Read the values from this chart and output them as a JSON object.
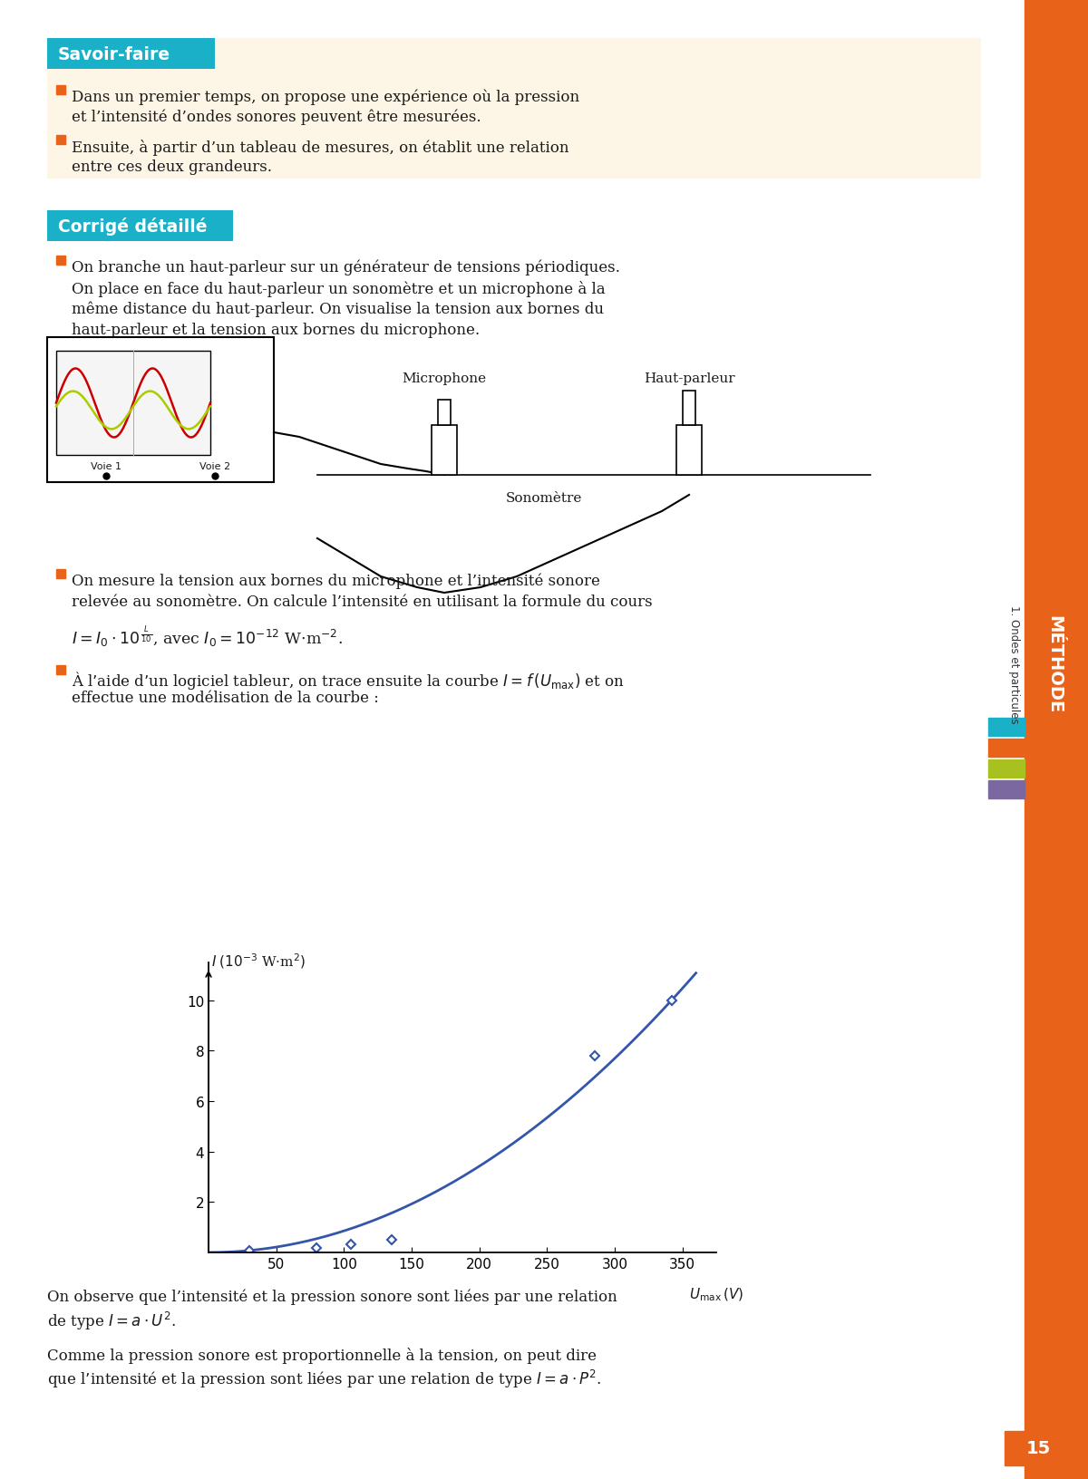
{
  "page_bg": "#ffffff",
  "cream_bg": "#fdf5e6",
  "teal_color": "#1ab0c8",
  "orange_color": "#e8621a",
  "text_color": "#1a1a1a",
  "blue_curve": "#3355aa",
  "savoir_faire_title": "Savoir-faire",
  "sf_bullet1_line1": "Dans un premier temps, on propose une expérience où la pression",
  "sf_bullet1_line2": "et l’intensité d’ondes sonores peuvent être mesurées.",
  "sf_bullet2_line1": "Ensuite, à partir d’un tableau de mesures, on établit une relation",
  "sf_bullet2_line2": "entre ces deux grandeurs.",
  "corrige_title": "Corrigé détaillé",
  "p1_line1": "On branche un haut-parleur sur un générateur de tensions périodiques.",
  "p1_line2": "On place en face du haut-parleur un sonomètre et un microphone à la",
  "p1_line3": "même distance du haut-parleur. On visualise la tension aux bornes du",
  "p1_line4": "haut-parleur et la tension aux bornes du microphone.",
  "p2_line1": "On mesure la tension aux bornes du microphone et l’intensité sonore",
  "p2_line2": "relevée au sonomètre. On calcule l’intensité en utilisant la formule du cours",
  "p3_line1": "À l’aide d’un logiciel tableur, on trace ensuite la courbe $I = f\\,(U_{\\mathrm{max}})$ et on",
  "p3_line2": "effectue une modélisation de la courbe :",
  "p4_line1": "On observe que l’intensité et la pression sonore sont liées par une relation",
  "p4_line2": "de type $I = a\\cdot U^2$.",
  "p5_line1": "Comme la pression sonore est proportionnelle à la tension, on peut dire",
  "p5_line2": "que l’intensité et la pression sont liées par une relation de type $I = a\\cdot P^2$.",
  "graph_xticks": [
    50,
    100,
    150,
    200,
    250,
    300,
    350
  ],
  "graph_yticks": [
    2,
    4,
    6,
    8,
    10
  ],
  "graph_xlim": [
    0,
    375
  ],
  "graph_ylim": [
    0,
    11.5
  ],
  "data_x": [
    30,
    80,
    105,
    135,
    285,
    342
  ],
  "data_y": [
    0.06,
    0.18,
    0.31,
    0.52,
    7.8,
    10.0
  ],
  "page_number": "15",
  "sidebar_colors": [
    "#1ab0c8",
    "#e8621a",
    "#a8c020",
    "#7b68a0"
  ]
}
